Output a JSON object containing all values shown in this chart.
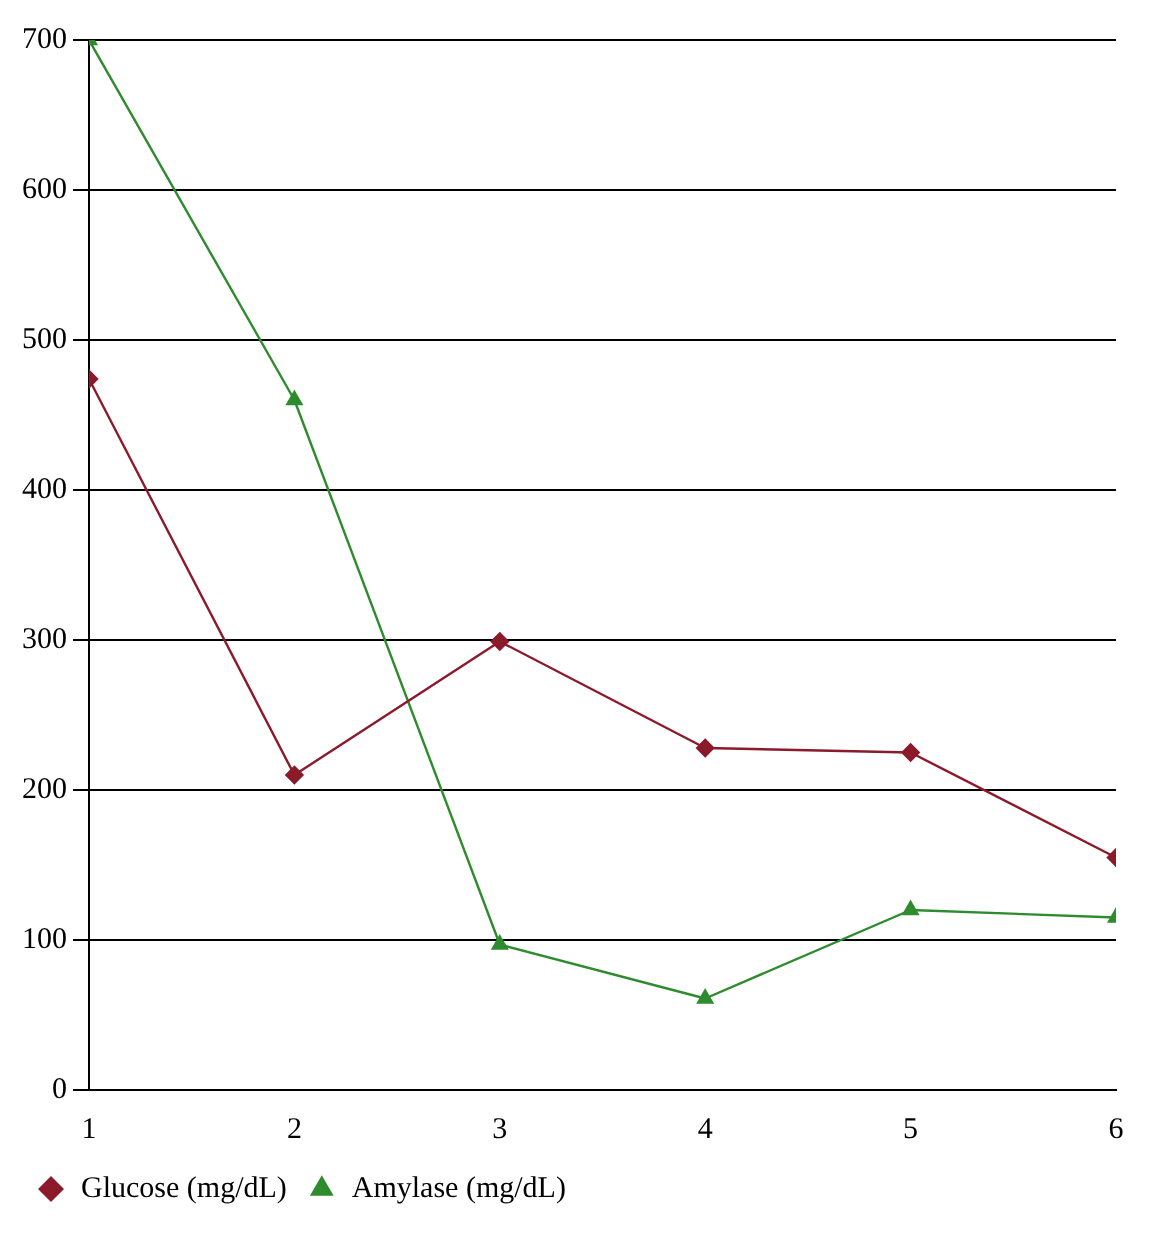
{
  "chart_data": {
    "type": "line",
    "x": [
      1,
      2,
      3,
      4,
      5,
      6
    ],
    "xlim": [
      1,
      6
    ],
    "xticks": [
      1,
      2,
      3,
      4,
      5,
      6
    ],
    "ylim": [
      0,
      700
    ],
    "yticks": [
      0,
      100,
      200,
      300,
      400,
      500,
      600,
      700
    ],
    "grid": "y",
    "legend": "bottom left",
    "line_style": "solid",
    "series": [
      {
        "name": "Glucose (mg/dL)",
        "color": "#8b1a2b",
        "marker": "diamond",
        "values": [
          474,
          210,
          299,
          228,
          225,
          155
        ]
      },
      {
        "name": "Amylase (mg/dL)",
        "color": "#2e8b2e",
        "marker": "triangle",
        "values": [
          700,
          460,
          97,
          61,
          120,
          115
        ]
      }
    ]
  }
}
